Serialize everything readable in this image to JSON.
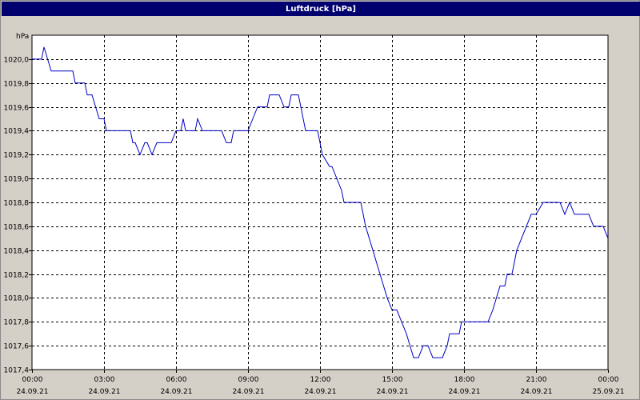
{
  "window": {
    "title": "Luftdruck [hPa]"
  },
  "chart_data": {
    "type": "line",
    "title": "Luftdruck [hPa]",
    "ylabel": "hPa",
    "xlabel": "",
    "x_unit": "hours from 24.09.21 00:00",
    "ylim": [
      1017.4,
      1020.2
    ],
    "xlim": [
      0,
      24
    ],
    "grid": true,
    "line_color": "#0000c8",
    "y_ticks": [
      {
        "value": 1017.4,
        "label": "1017,4"
      },
      {
        "value": 1017.6,
        "label": "1017,6"
      },
      {
        "value": 1017.8,
        "label": "1017,8"
      },
      {
        "value": 1018.0,
        "label": "1018,0"
      },
      {
        "value": 1018.2,
        "label": "1018,2"
      },
      {
        "value": 1018.4,
        "label": "1018,4"
      },
      {
        "value": 1018.6,
        "label": "1018,6"
      },
      {
        "value": 1018.8,
        "label": "1018,8"
      },
      {
        "value": 1019.0,
        "label": "1019,0"
      },
      {
        "value": 1019.2,
        "label": "1019,2"
      },
      {
        "value": 1019.4,
        "label": "1019,4"
      },
      {
        "value": 1019.6,
        "label": "1019,6"
      },
      {
        "value": 1019.8,
        "label": "1019,8"
      },
      {
        "value": 1020.0,
        "label": "1020,0"
      }
    ],
    "x_ticks": [
      {
        "value": 0,
        "time": "00:00",
        "date": "24.09.21"
      },
      {
        "value": 3,
        "time": "03:00",
        "date": "24.09.21"
      },
      {
        "value": 6,
        "time": "06:00",
        "date": "24.09.21"
      },
      {
        "value": 9,
        "time": "09:00",
        "date": "24.09.21"
      },
      {
        "value": 12,
        "time": "12:00",
        "date": "24.09.21"
      },
      {
        "value": 15,
        "time": "15:00",
        "date": "24.09.21"
      },
      {
        "value": 18,
        "time": "18:00",
        "date": "24.09.21"
      },
      {
        "value": 21,
        "time": "21:00",
        "date": "24.09.21"
      },
      {
        "value": 24,
        "time": "00:00",
        "date": "25.09.21"
      }
    ],
    "series": [
      {
        "values": [
          [
            0.0,
            1020.0
          ],
          [
            0.4,
            1020.0
          ],
          [
            0.5,
            1020.1
          ],
          [
            0.8,
            1019.9
          ],
          [
            1.7,
            1019.9
          ],
          [
            1.8,
            1019.8
          ],
          [
            2.2,
            1019.8
          ],
          [
            2.3,
            1019.7
          ],
          [
            2.5,
            1019.7
          ],
          [
            2.8,
            1019.5
          ],
          [
            3.0,
            1019.5
          ],
          [
            3.1,
            1019.4
          ],
          [
            4.1,
            1019.4
          ],
          [
            4.2,
            1019.3
          ],
          [
            4.3,
            1019.3
          ],
          [
            4.5,
            1019.2
          ],
          [
            4.7,
            1019.3
          ],
          [
            4.8,
            1019.3
          ],
          [
            5.0,
            1019.2
          ],
          [
            5.2,
            1019.3
          ],
          [
            5.8,
            1019.3
          ],
          [
            6.0,
            1019.4
          ],
          [
            6.2,
            1019.4
          ],
          [
            6.3,
            1019.5
          ],
          [
            6.4,
            1019.4
          ],
          [
            6.8,
            1019.4
          ],
          [
            6.9,
            1019.5
          ],
          [
            7.1,
            1019.4
          ],
          [
            7.9,
            1019.4
          ],
          [
            8.1,
            1019.3
          ],
          [
            8.3,
            1019.3
          ],
          [
            8.4,
            1019.4
          ],
          [
            9.0,
            1019.4
          ],
          [
            9.2,
            1019.5
          ],
          [
            9.4,
            1019.6
          ],
          [
            9.8,
            1019.6
          ],
          [
            9.9,
            1019.7
          ],
          [
            10.3,
            1019.7
          ],
          [
            10.5,
            1019.6
          ],
          [
            10.7,
            1019.6
          ],
          [
            10.8,
            1019.7
          ],
          [
            11.1,
            1019.7
          ],
          [
            11.3,
            1019.5
          ],
          [
            11.4,
            1019.4
          ],
          [
            11.9,
            1019.4
          ],
          [
            12.1,
            1019.2
          ],
          [
            12.4,
            1019.1
          ],
          [
            12.5,
            1019.1
          ],
          [
            12.9,
            1018.9
          ],
          [
            13.0,
            1018.8
          ],
          [
            13.7,
            1018.8
          ],
          [
            13.9,
            1018.6
          ],
          [
            14.2,
            1018.4
          ],
          [
            14.5,
            1018.2
          ],
          [
            14.8,
            1018.0
          ],
          [
            15.0,
            1017.9
          ],
          [
            15.2,
            1017.9
          ],
          [
            15.4,
            1017.8
          ],
          [
            15.6,
            1017.7
          ],
          [
            15.9,
            1017.5
          ],
          [
            16.1,
            1017.5
          ],
          [
            16.3,
            1017.6
          ],
          [
            16.5,
            1017.6
          ],
          [
            16.7,
            1017.5
          ],
          [
            17.1,
            1017.5
          ],
          [
            17.3,
            1017.6
          ],
          [
            17.4,
            1017.7
          ],
          [
            17.8,
            1017.7
          ],
          [
            17.9,
            1017.8
          ],
          [
            19.0,
            1017.8
          ],
          [
            19.2,
            1017.9
          ],
          [
            19.5,
            1018.1
          ],
          [
            19.7,
            1018.1
          ],
          [
            19.8,
            1018.2
          ],
          [
            20.0,
            1018.2
          ],
          [
            20.2,
            1018.4
          ],
          [
            20.6,
            1018.6
          ],
          [
            20.8,
            1018.7
          ],
          [
            21.0,
            1018.7
          ],
          [
            21.3,
            1018.8
          ],
          [
            22.0,
            1018.8
          ],
          [
            22.2,
            1018.7
          ],
          [
            22.4,
            1018.8
          ],
          [
            22.6,
            1018.7
          ],
          [
            23.2,
            1018.7
          ],
          [
            23.4,
            1018.6
          ],
          [
            23.8,
            1018.6
          ],
          [
            24.0,
            1018.5
          ]
        ]
      }
    ]
  }
}
